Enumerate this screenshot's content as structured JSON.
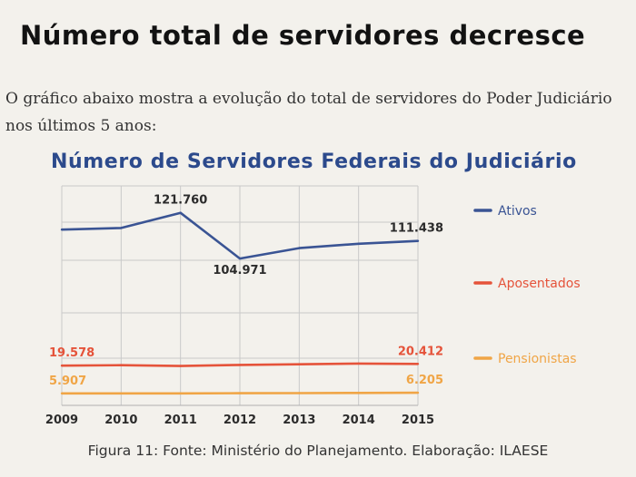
{
  "heading": "Número total de servidores decresce",
  "intro": "O gráfico abaixo mostra a evolução do total de servidores do Poder Judiciário nos últimos 5 anos:",
  "caption": "Figura 11: Fonte: Ministério do Planejamento. Elaboração: ILAESE",
  "chart_data": {
    "type": "line",
    "title": "Número de Servidores Federais do Judiciário",
    "x": [
      "2009",
      "2010",
      "2011",
      "2012",
      "2013",
      "2014",
      "2015"
    ],
    "grid": true,
    "legend_position": "right",
    "series": [
      {
        "name": "Ativos",
        "color": "#3a5494",
        "values": [
          115600,
          116200,
          121760,
          104971,
          108800,
          110400,
          111438
        ],
        "labels": [
          {
            "index": 2,
            "text": "121.760",
            "position": "above"
          },
          {
            "index": 3,
            "text": "104.971",
            "position": "below"
          },
          {
            "index": 6,
            "text": "111.438",
            "position": "above"
          }
        ]
      },
      {
        "name": "Aposentados",
        "color": "#e5533a",
        "values": [
          19578,
          19800,
          19400,
          19950,
          20250,
          20600,
          20412
        ],
        "labels": [
          {
            "index": 0,
            "text": "19.578",
            "position": "above"
          },
          {
            "index": 6,
            "text": "20.412",
            "position": "above"
          }
        ]
      },
      {
        "name": "Pensionistas",
        "color": "#f0a546",
        "values": [
          5907,
          5880,
          5900,
          5980,
          6050,
          6120,
          6205
        ],
        "labels": [
          {
            "index": 0,
            "text": "5.907",
            "position": "above"
          },
          {
            "index": 6,
            "text": "6.205",
            "position": "above"
          }
        ]
      }
    ]
  }
}
